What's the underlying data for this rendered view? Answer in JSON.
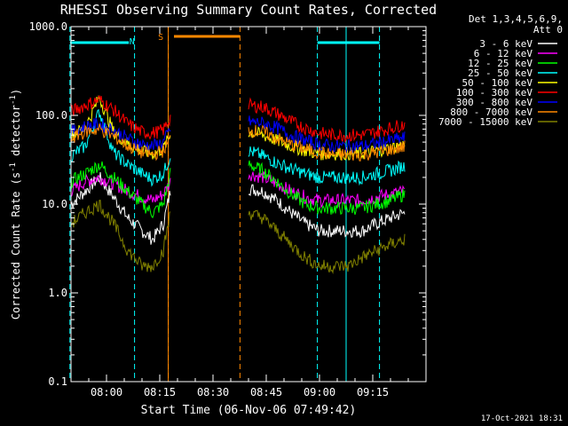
{
  "chart_data": {
    "type": "line",
    "title": "RHESSI Observing Summary Count Rates, Corrected",
    "xlabel": "Start Time (06-Nov-06 07:49:42)",
    "ylabel_main": "Corrected Count Rate (s",
    "ylabel_sup1": "-1",
    "ylabel_mid": " detector",
    "ylabel_sup2": "-1",
    "ylabel_end": ")",
    "yscale": "log",
    "ylim": [
      0.1,
      1000.0
    ],
    "xlim_min": [
      0,
      100
    ],
    "x_unit": "minutes after 07:50:00",
    "y_ticks": [
      "0.1",
      "1.0",
      "10.0",
      "100.0",
      "1000.0"
    ],
    "x_ticks": [
      {
        "label": "08:00",
        "min": 10
      },
      {
        "label": "08:15",
        "min": 25
      },
      {
        "label": "08:30",
        "min": 40
      },
      {
        "label": "08:45",
        "min": 55
      },
      {
        "label": "09:00",
        "min": 70
      },
      {
        "label": "09:15",
        "min": 85
      }
    ],
    "legend_header_1": "Det 1,3,4,5,6,9,",
    "legend_header_2": "Att 0",
    "timestamp": "17-Oct-2021 18:31",
    "flag_N": "N",
    "flag_S": "S",
    "night_markers_min": [
      -0.3,
      17.9,
      69.4,
      86.9
    ],
    "saa_markers_min": [
      27.4,
      47.6
    ],
    "bar_N": [
      [
        -0.3,
        16.3
      ],
      [
        69.4,
        86.9
      ]
    ],
    "bar_S": [
      [
        29.0,
        47.6
      ]
    ],
    "gap_min": [
      47.6,
      50.0
    ],
    "series": [
      {
        "name": "3 - 6 keV",
        "color": "#ffffff",
        "values": [
          [
            0,
            10
          ],
          [
            4,
            14
          ],
          [
            8,
            20
          ],
          [
            12,
            12
          ],
          [
            16,
            7
          ],
          [
            20,
            5
          ],
          [
            23,
            4
          ],
          [
            26,
            6
          ],
          [
            28,
            14
          ],
          [
            50,
            15
          ],
          [
            54,
            14
          ],
          [
            58,
            11
          ],
          [
            62,
            8
          ],
          [
            66,
            6
          ],
          [
            70,
            5
          ],
          [
            74,
            5
          ],
          [
            78,
            5
          ],
          [
            82,
            5
          ],
          [
            86,
            6
          ],
          [
            90,
            7
          ],
          [
            94,
            8
          ]
        ]
      },
      {
        "name": "6 - 12 keV",
        "color": "#ff00ff",
        "values": [
          [
            0,
            14
          ],
          [
            4,
            18
          ],
          [
            8,
            20
          ],
          [
            12,
            17
          ],
          [
            16,
            14
          ],
          [
            20,
            12
          ],
          [
            23,
            11
          ],
          [
            26,
            13
          ],
          [
            28,
            18
          ],
          [
            50,
            22
          ],
          [
            54,
            20
          ],
          [
            58,
            17
          ],
          [
            62,
            14
          ],
          [
            66,
            12
          ],
          [
            70,
            11
          ],
          [
            74,
            11
          ],
          [
            78,
            11
          ],
          [
            82,
            11
          ],
          [
            86,
            12
          ],
          [
            90,
            13
          ],
          [
            94,
            14
          ]
        ]
      },
      {
        "name": "12 - 25 keV",
        "color": "#00ff00",
        "values": [
          [
            0,
            18
          ],
          [
            4,
            22
          ],
          [
            8,
            28
          ],
          [
            12,
            20
          ],
          [
            16,
            14
          ],
          [
            20,
            10
          ],
          [
            23,
            8
          ],
          [
            26,
            10
          ],
          [
            28,
            22
          ],
          [
            50,
            28
          ],
          [
            54,
            24
          ],
          [
            58,
            18
          ],
          [
            62,
            13
          ],
          [
            66,
            10
          ],
          [
            70,
            9
          ],
          [
            74,
            9
          ],
          [
            78,
            9
          ],
          [
            82,
            9
          ],
          [
            86,
            10
          ],
          [
            90,
            11
          ],
          [
            94,
            13
          ]
        ]
      },
      {
        "name": "25 - 50 keV",
        "color": "#00ffff",
        "values": [
          [
            0,
            35
          ],
          [
            4,
            45
          ],
          [
            8,
            110
          ],
          [
            12,
            38
          ],
          [
            16,
            28
          ],
          [
            20,
            22
          ],
          [
            23,
            19
          ],
          [
            26,
            22
          ],
          [
            28,
            35
          ],
          [
            50,
            40
          ],
          [
            54,
            35
          ],
          [
            58,
            29
          ],
          [
            62,
            25
          ],
          [
            66,
            22
          ],
          [
            70,
            20
          ],
          [
            74,
            20
          ],
          [
            78,
            20
          ],
          [
            82,
            20
          ],
          [
            86,
            22
          ],
          [
            90,
            24
          ],
          [
            94,
            27
          ]
        ]
      },
      {
        "name": "50 - 100 keV",
        "color": "#ffff00",
        "values": [
          [
            0,
            60
          ],
          [
            4,
            72
          ],
          [
            8,
            160
          ],
          [
            12,
            65
          ],
          [
            16,
            48
          ],
          [
            20,
            40
          ],
          [
            23,
            37
          ],
          [
            26,
            42
          ],
          [
            28,
            60
          ],
          [
            50,
            65
          ],
          [
            54,
            60
          ],
          [
            58,
            52
          ],
          [
            62,
            45
          ],
          [
            66,
            40
          ],
          [
            70,
            37
          ],
          [
            74,
            37
          ],
          [
            78,
            37
          ],
          [
            82,
            37
          ],
          [
            86,
            40
          ],
          [
            90,
            43
          ],
          [
            94,
            47
          ]
        ]
      },
      {
        "name": "100 - 300 keV",
        "color": "#ff0000",
        "values": [
          [
            0,
            110
          ],
          [
            4,
            130
          ],
          [
            8,
            150
          ],
          [
            12,
            115
          ],
          [
            16,
            80
          ],
          [
            20,
            65
          ],
          [
            23,
            63
          ],
          [
            26,
            68
          ],
          [
            28,
            95
          ],
          [
            50,
            130
          ],
          [
            54,
            125
          ],
          [
            58,
            105
          ],
          [
            62,
            85
          ],
          [
            66,
            72
          ],
          [
            70,
            63
          ],
          [
            74,
            60
          ],
          [
            78,
            60
          ],
          [
            82,
            60
          ],
          [
            86,
            65
          ],
          [
            90,
            72
          ],
          [
            94,
            80
          ]
        ]
      },
      {
        "name": "300 - 800 keV",
        "color": "#0000ff",
        "values": [
          [
            0,
            65
          ],
          [
            4,
            75
          ],
          [
            8,
            80
          ],
          [
            12,
            68
          ],
          [
            16,
            55
          ],
          [
            20,
            47
          ],
          [
            23,
            45
          ],
          [
            26,
            50
          ],
          [
            28,
            70
          ],
          [
            50,
            85
          ],
          [
            54,
            82
          ],
          [
            58,
            72
          ],
          [
            62,
            60
          ],
          [
            66,
            52
          ],
          [
            70,
            47
          ],
          [
            74,
            45
          ],
          [
            78,
            45
          ],
          [
            82,
            45
          ],
          [
            86,
            48
          ],
          [
            90,
            52
          ],
          [
            94,
            56
          ]
        ]
      },
      {
        "name": "800 - 7000 keV",
        "color": "#ff8800",
        "values": [
          [
            0,
            55
          ],
          [
            4,
            65
          ],
          [
            8,
            70
          ],
          [
            12,
            58
          ],
          [
            16,
            45
          ],
          [
            20,
            38
          ],
          [
            23,
            36
          ],
          [
            26,
            40
          ],
          [
            28,
            55
          ],
          [
            50,
            68
          ],
          [
            54,
            65
          ],
          [
            58,
            55
          ],
          [
            62,
            47
          ],
          [
            66,
            42
          ],
          [
            70,
            38
          ],
          [
            74,
            36
          ],
          [
            78,
            36
          ],
          [
            82,
            36
          ],
          [
            86,
            38
          ],
          [
            90,
            41
          ],
          [
            94,
            44
          ]
        ]
      },
      {
        "name": "7000 - 15000 keV",
        "color": "#808000",
        "values": [
          [
            0,
            6
          ],
          [
            4,
            8
          ],
          [
            8,
            10
          ],
          [
            12,
            6
          ],
          [
            16,
            3
          ],
          [
            20,
            2
          ],
          [
            23,
            2
          ],
          [
            26,
            3
          ],
          [
            28,
            8
          ],
          [
            50,
            8
          ],
          [
            54,
            7
          ],
          [
            58,
            5
          ],
          [
            62,
            3.5
          ],
          [
            66,
            2.5
          ],
          [
            70,
            2
          ],
          [
            74,
            2
          ],
          [
            78,
            2
          ],
          [
            82,
            2.5
          ],
          [
            86,
            3
          ],
          [
            90,
            3.5
          ],
          [
            94,
            4
          ]
        ]
      }
    ]
  }
}
